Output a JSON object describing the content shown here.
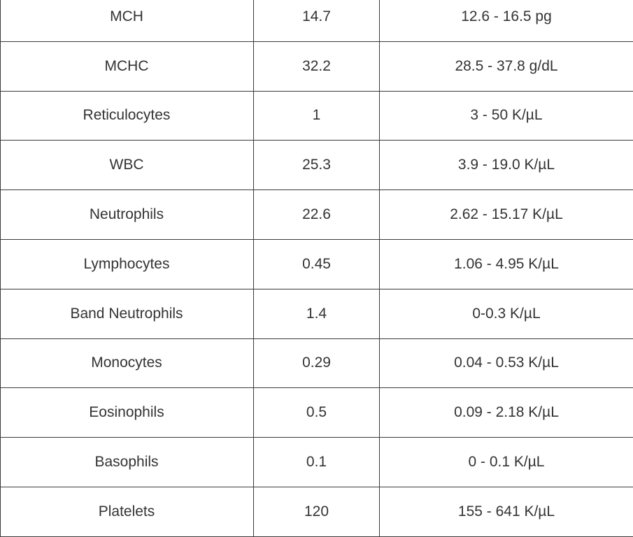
{
  "table": {
    "rows": [
      {
        "name": "MCH",
        "value": "14.7",
        "range": "12.6 - 16.5 pg"
      },
      {
        "name": "MCHC",
        "value": "32.2",
        "range": "28.5 - 37.8 g/dL"
      },
      {
        "name": "Reticulocytes",
        "value": "1",
        "range": "3 - 50 K/µL"
      },
      {
        "name": "WBC",
        "value": "25.3",
        "range": "3.9 - 19.0 K/µL"
      },
      {
        "name": "Neutrophils",
        "value": "22.6",
        "range": "2.62 - 15.17 K/µL"
      },
      {
        "name": "Lymphocytes",
        "value": "0.45",
        "range": "1.06 - 4.95 K/µL"
      },
      {
        "name": "Band Neutrophils",
        "value": "1.4",
        "range": "0-0.3  K/µL"
      },
      {
        "name": "Monocytes",
        "value": "0.29",
        "range": "0.04 - 0.53 K/µL"
      },
      {
        "name": "Eosinophils",
        "value": "0.5",
        "range": "0.09 - 2.18 K/µL"
      },
      {
        "name": "Basophils",
        "value": "0.1",
        "range": "0 - 0.1 K/µL"
      },
      {
        "name": "Platelets",
        "value": "120",
        "range": "155 - 641 K/µL"
      }
    ]
  }
}
